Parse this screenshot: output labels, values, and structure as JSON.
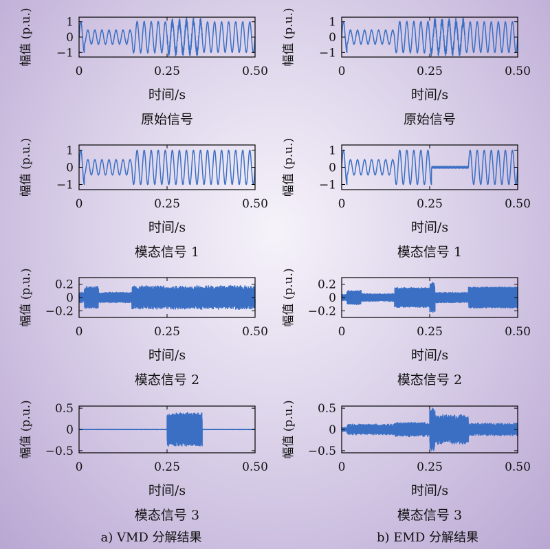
{
  "chart_data": [
    {
      "id": "vmd-original",
      "type": "line",
      "caption": "原始信号",
      "xlabel": "时间/s",
      "ylabel": "幅值 (p.u.)",
      "xlim": [
        0,
        0.5
      ],
      "ylim": [
        -1.3,
        1.3
      ],
      "xticks": [
        0,
        0.25,
        0.5
      ],
      "xtick_labels": [
        "0",
        "0.25",
        "0.50"
      ],
      "yticks": [
        -1,
        0,
        1
      ],
      "ytick_labels": [
        "−1",
        "0",
        "1"
      ],
      "segments": [
        {
          "x": [
            0,
            0.015
          ],
          "amp": 1.0,
          "freq": 50,
          "noise": 0
        },
        {
          "x": [
            0.015,
            0.15
          ],
          "amp": 0.45,
          "freq": 50,
          "noise": 0.03
        },
        {
          "x": [
            0.15,
            0.25
          ],
          "amp": 1.0,
          "freq": 50,
          "noise": 0.05
        },
        {
          "x": [
            0.25,
            0.35
          ],
          "amp": 1.0,
          "freq": 50,
          "noise": 0.25
        },
        {
          "x": [
            0.35,
            0.5
          ],
          "amp": 1.0,
          "freq": 50,
          "noise": 0
        }
      ]
    },
    {
      "id": "vmd-mode1",
      "type": "line",
      "caption": "模态信号 1",
      "xlabel": "时间/s",
      "ylabel": "幅值 (p.u.)",
      "xlim": [
        0,
        0.5
      ],
      "ylim": [
        -1.3,
        1.3
      ],
      "xticks": [
        0,
        0.25,
        0.5
      ],
      "xtick_labels": [
        "0",
        "0.25",
        "0.50"
      ],
      "yticks": [
        -1,
        0,
        1
      ],
      "ytick_labels": [
        "−1",
        "0",
        "1"
      ],
      "segments": [
        {
          "x": [
            0,
            0.015
          ],
          "amp": 1.0,
          "freq": 50,
          "noise": 0
        },
        {
          "x": [
            0.015,
            0.15
          ],
          "amp": 0.45,
          "freq": 50,
          "noise": 0
        },
        {
          "x": [
            0.15,
            0.5
          ],
          "amp": 1.0,
          "freq": 50,
          "noise": 0
        }
      ]
    },
    {
      "id": "vmd-mode2",
      "type": "line",
      "caption": "模态信号 2",
      "xlabel": "时间/s",
      "ylabel": "幅值 (p.u.)",
      "xlim": [
        0,
        0.5
      ],
      "ylim": [
        -0.3,
        0.3
      ],
      "xticks": [
        0,
        0.25,
        0.5
      ],
      "xtick_labels": [
        "0",
        "0.25",
        "0.50"
      ],
      "yticks": [
        -0.2,
        0,
        0.2
      ],
      "ytick_labels": [
        "−0.2",
        "0",
        "0.2"
      ],
      "segments": [
        {
          "x": [
            0,
            0.015
          ],
          "amp": 0.06,
          "freq": 550,
          "noise": 0.02
        },
        {
          "x": [
            0.015,
            0.055
          ],
          "amp": 0.15,
          "freq": 550,
          "noise": 0.02
        },
        {
          "x": [
            0.055,
            0.15
          ],
          "amp": 0.07,
          "freq": 550,
          "noise": 0.01
        },
        {
          "x": [
            0.15,
            0.5
          ],
          "amp": 0.15,
          "freq": 550,
          "noise": 0.03
        }
      ]
    },
    {
      "id": "vmd-mode3",
      "type": "line",
      "caption": "模态信号 3",
      "xlabel": "时间/s",
      "ylabel": "幅值 (p.u.)",
      "xlim": [
        0,
        0.5
      ],
      "ylim": [
        -0.55,
        0.55
      ],
      "xticks": [
        0,
        0.25,
        0.5
      ],
      "xtick_labels": [
        "0",
        "0.25",
        "0.50"
      ],
      "yticks": [
        -0.5,
        0,
        0.5
      ],
      "ytick_labels": [
        "−0.5",
        "0",
        "0.5"
      ],
      "segments": [
        {
          "x": [
            0,
            0.25
          ],
          "amp": 0.004,
          "freq": 1500,
          "noise": 0.002
        },
        {
          "x": [
            0.25,
            0.35
          ],
          "amp": 0.36,
          "freq": 1500,
          "noise": 0.04
        },
        {
          "x": [
            0.35,
            0.5
          ],
          "amp": 0.004,
          "freq": 1500,
          "noise": 0.002
        }
      ]
    },
    {
      "id": "emd-original",
      "type": "line",
      "caption": "原始信号",
      "xlabel": "时间/s",
      "ylabel": "幅值 (p.u.)",
      "xlim": [
        0,
        0.5
      ],
      "ylim": [
        -1.3,
        1.3
      ],
      "xticks": [
        0,
        0.25,
        0.5
      ],
      "xtick_labels": [
        "0",
        "0.25",
        "0.50"
      ],
      "yticks": [
        -1,
        0,
        1
      ],
      "ytick_labels": [
        "−1",
        "0",
        "1"
      ],
      "segments": [
        {
          "x": [
            0,
            0.015
          ],
          "amp": 1.0,
          "freq": 50,
          "noise": 0
        },
        {
          "x": [
            0.015,
            0.15
          ],
          "amp": 0.45,
          "freq": 50,
          "noise": 0.03
        },
        {
          "x": [
            0.15,
            0.25
          ],
          "amp": 1.0,
          "freq": 50,
          "noise": 0.05
        },
        {
          "x": [
            0.25,
            0.35
          ],
          "amp": 1.0,
          "freq": 50,
          "noise": 0.25
        },
        {
          "x": [
            0.35,
            0.5
          ],
          "amp": 1.0,
          "freq": 50,
          "noise": 0
        }
      ]
    },
    {
      "id": "emd-mode1",
      "type": "line",
      "caption": "模态信号 1",
      "xlabel": "时间/s",
      "ylabel": "幅值 (p.u.)",
      "xlim": [
        0,
        0.5
      ],
      "ylim": [
        -1.3,
        1.3
      ],
      "xticks": [
        0,
        0.25,
        0.5
      ],
      "xtick_labels": [
        "0",
        "0.25",
        "0.50"
      ],
      "yticks": [
        -1,
        0,
        1
      ],
      "ytick_labels": [
        "−1",
        "0",
        "1"
      ],
      "segments": [
        {
          "x": [
            0,
            0.015
          ],
          "amp": 1.0,
          "freq": 50,
          "noise": 0
        },
        {
          "x": [
            0.015,
            0.15
          ],
          "amp": 0.45,
          "freq": 50,
          "noise": 0
        },
        {
          "x": [
            0.15,
            0.255
          ],
          "amp": 1.0,
          "freq": 50,
          "noise": 0
        },
        {
          "x": [
            0.255,
            0.36
          ],
          "amp": 0.06,
          "freq": 250,
          "noise": 0
        },
        {
          "x": [
            0.36,
            0.5
          ],
          "amp": 1.0,
          "freq": 50,
          "noise": 0
        }
      ]
    },
    {
      "id": "emd-mode2",
      "type": "line",
      "caption": "模态信号 2",
      "xlabel": "时间/s",
      "ylabel": "幅值 (p.u.)",
      "xlim": [
        0,
        0.5
      ],
      "ylim": [
        -0.3,
        0.3
      ],
      "xticks": [
        0,
        0.25,
        0.5
      ],
      "xtick_labels": [
        "0",
        "0.25",
        "0.50"
      ],
      "yticks": [
        -0.2,
        0,
        0.2
      ],
      "ytick_labels": [
        "−0.2",
        "0",
        "0.2"
      ],
      "segments": [
        {
          "x": [
            0,
            0.015
          ],
          "amp": 0.04,
          "freq": 550,
          "noise": 0.01
        },
        {
          "x": [
            0.015,
            0.055
          ],
          "amp": 0.1,
          "freq": 550,
          "noise": 0.01
        },
        {
          "x": [
            0.055,
            0.15
          ],
          "amp": 0.05,
          "freq": 550,
          "noise": 0.01
        },
        {
          "x": [
            0.15,
            0.25
          ],
          "amp": 0.14,
          "freq": 550,
          "noise": 0.01
        },
        {
          "x": [
            0.25,
            0.265
          ],
          "amp": 0.2,
          "freq": 550,
          "noise": 0.03
        },
        {
          "x": [
            0.265,
            0.36
          ],
          "amp": 0.07,
          "freq": 550,
          "noise": 0.01
        },
        {
          "x": [
            0.36,
            0.5
          ],
          "amp": 0.15,
          "freq": 550,
          "noise": 0.01
        }
      ]
    },
    {
      "id": "emd-mode3",
      "type": "line",
      "caption": "模态信号 3",
      "xlabel": "时间/s",
      "ylabel": "幅值 (p.u.)",
      "xlim": [
        0,
        0.5
      ],
      "ylim": [
        -0.55,
        0.55
      ],
      "xticks": [
        0,
        0.25,
        0.5
      ],
      "xtick_labels": [
        "0",
        "0.25",
        "0.50"
      ],
      "yticks": [
        -0.5,
        0,
        0.5
      ],
      "ytick_labels": [
        "−0.5",
        "0",
        "0.5"
      ],
      "segments": [
        {
          "x": [
            0,
            0.015
          ],
          "amp": 0.03,
          "freq": 1500,
          "noise": 0.02
        },
        {
          "x": [
            0.015,
            0.15
          ],
          "amp": 0.1,
          "freq": 1500,
          "noise": 0.03
        },
        {
          "x": [
            0.15,
            0.25
          ],
          "amp": 0.14,
          "freq": 1500,
          "noise": 0.03
        },
        {
          "x": [
            0.25,
            0.265
          ],
          "amp": 0.45,
          "freq": 1500,
          "noise": 0.06
        },
        {
          "x": [
            0.265,
            0.36
          ],
          "amp": 0.3,
          "freq": 1500,
          "noise": 0.05
        },
        {
          "x": [
            0.36,
            0.5
          ],
          "amp": 0.12,
          "freq": 1500,
          "noise": 0.03
        }
      ]
    }
  ],
  "captions": {
    "left": "a) VMD 分解结果",
    "right": "b) EMD 分解结果"
  },
  "colors": {
    "line": "#3a6fc4",
    "axis": "#000000",
    "text": "#111111"
  }
}
